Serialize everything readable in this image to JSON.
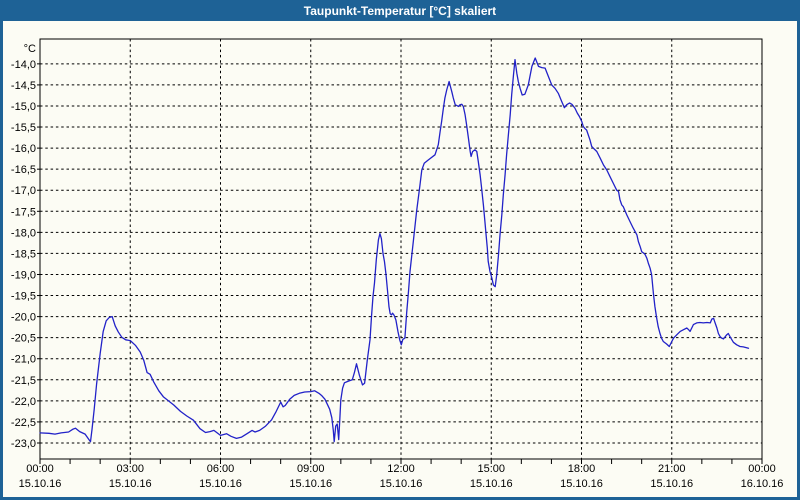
{
  "window": {
    "title": "Taupunkt-Temperatur [°C] skaliert"
  },
  "colors": {
    "titlebar": "#1E6296",
    "window_bg": "#FCFCF4",
    "line": "#2222C8",
    "grid": "#000000",
    "title_text": "#FFFFFF"
  },
  "chart_data": {
    "type": "line",
    "title": "Taupunkt-Temperatur [°C] skaliert",
    "grid": "dashed",
    "legend": "none",
    "y_axis": {
      "unit": "°C",
      "max": -14.0,
      "min": -23.0,
      "step": 0.5,
      "ylim": [
        -23.38,
        -13.41
      ],
      "labels": [
        "-14,0",
        "-14,5",
        "-15,0",
        "-15,5",
        "-16,0",
        "-16,5",
        "-17,0",
        "-17,5",
        "-18,0",
        "-18,5",
        "-19,0",
        "-19,5",
        "-20,0",
        "-20,5",
        "-21,0",
        "-21,5",
        "-22,0",
        "-22,5",
        "-23,0"
      ]
    },
    "x_axis": {
      "gridline_hours": [
        3,
        6,
        9,
        12,
        15,
        18,
        21
      ],
      "minor_tick_every_hours": 1,
      "labels": [
        {
          "hour": 0,
          "time": "00:00",
          "date": "15.10.16"
        },
        {
          "hour": 3,
          "time": "03:00",
          "date": "15.10.16"
        },
        {
          "hour": 6,
          "time": "06:00",
          "date": "15.10.16"
        },
        {
          "hour": 9,
          "time": "09:00",
          "date": "15.10.16"
        },
        {
          "hour": 12,
          "time": "12:00",
          "date": "15.10.16"
        },
        {
          "hour": 15,
          "time": "15:00",
          "date": "15.10.16"
        },
        {
          "hour": 18,
          "time": "18:00",
          "date": "15.10.16"
        },
        {
          "hour": 21,
          "time": "21:00",
          "date": "15.10.16"
        },
        {
          "hour": 24,
          "time": "00:00",
          "date": "16.10.16"
        }
      ]
    },
    "series": [
      {
        "name": "Taupunkt-Temperatur",
        "color": "#2222C8",
        "points": [
          [
            0.0,
            -22.76
          ],
          [
            0.3,
            -22.77
          ],
          [
            0.5,
            -22.79
          ],
          [
            0.7,
            -22.76
          ],
          [
            0.95,
            -22.74
          ],
          [
            1.1,
            -22.67
          ],
          [
            1.18,
            -22.65
          ],
          [
            1.32,
            -22.73
          ],
          [
            1.5,
            -22.79
          ],
          [
            1.62,
            -22.91
          ],
          [
            1.68,
            -22.97
          ],
          [
            1.73,
            -22.68
          ],
          [
            1.8,
            -22.2
          ],
          [
            1.88,
            -21.6
          ],
          [
            2.0,
            -20.87
          ],
          [
            2.1,
            -20.35
          ],
          [
            2.2,
            -20.1
          ],
          [
            2.3,
            -20.02
          ],
          [
            2.4,
            -20.0
          ],
          [
            2.5,
            -20.22
          ],
          [
            2.6,
            -20.36
          ],
          [
            2.72,
            -20.49
          ],
          [
            2.85,
            -20.55
          ],
          [
            3.0,
            -20.57
          ],
          [
            3.17,
            -20.68
          ],
          [
            3.33,
            -20.84
          ],
          [
            3.45,
            -21.04
          ],
          [
            3.56,
            -21.33
          ],
          [
            3.66,
            -21.37
          ],
          [
            3.78,
            -21.55
          ],
          [
            3.95,
            -21.76
          ],
          [
            4.1,
            -21.9
          ],
          [
            4.27,
            -22.0
          ],
          [
            4.45,
            -22.1
          ],
          [
            4.67,
            -22.25
          ],
          [
            4.88,
            -22.36
          ],
          [
            5.1,
            -22.46
          ],
          [
            5.32,
            -22.66
          ],
          [
            5.5,
            -22.75
          ],
          [
            5.65,
            -22.73
          ],
          [
            5.78,
            -22.7
          ],
          [
            6.0,
            -22.82
          ],
          [
            6.2,
            -22.78
          ],
          [
            6.35,
            -22.84
          ],
          [
            6.53,
            -22.89
          ],
          [
            6.7,
            -22.86
          ],
          [
            6.88,
            -22.78
          ],
          [
            7.05,
            -22.7
          ],
          [
            7.15,
            -22.74
          ],
          [
            7.3,
            -22.7
          ],
          [
            7.5,
            -22.6
          ],
          [
            7.7,
            -22.45
          ],
          [
            7.85,
            -22.25
          ],
          [
            8.0,
            -22.03
          ],
          [
            8.08,
            -22.14
          ],
          [
            8.15,
            -22.11
          ],
          [
            8.3,
            -21.96
          ],
          [
            8.45,
            -21.87
          ],
          [
            8.62,
            -21.82
          ],
          [
            8.8,
            -21.79
          ],
          [
            9.0,
            -21.78
          ],
          [
            9.13,
            -21.76
          ],
          [
            9.27,
            -21.82
          ],
          [
            9.37,
            -21.88
          ],
          [
            9.47,
            -21.96
          ],
          [
            9.55,
            -22.08
          ],
          [
            9.63,
            -22.2
          ],
          [
            9.7,
            -22.4
          ],
          [
            9.75,
            -22.7
          ],
          [
            9.78,
            -22.97
          ],
          [
            9.83,
            -22.6
          ],
          [
            9.88,
            -22.55
          ],
          [
            9.93,
            -22.92
          ],
          [
            9.97,
            -22.4
          ],
          [
            10.0,
            -21.98
          ],
          [
            10.06,
            -21.7
          ],
          [
            10.12,
            -21.57
          ],
          [
            10.25,
            -21.53
          ],
          [
            10.38,
            -21.5
          ],
          [
            10.45,
            -21.33
          ],
          [
            10.52,
            -21.12
          ],
          [
            10.62,
            -21.4
          ],
          [
            10.72,
            -21.62
          ],
          [
            10.79,
            -21.58
          ],
          [
            10.88,
            -21.03
          ],
          [
            10.97,
            -20.55
          ],
          [
            11.02,
            -20.0
          ],
          [
            11.07,
            -19.52
          ],
          [
            11.12,
            -19.2
          ],
          [
            11.18,
            -18.65
          ],
          [
            11.25,
            -18.18
          ],
          [
            11.3,
            -18.03
          ],
          [
            11.35,
            -18.15
          ],
          [
            11.4,
            -18.5
          ],
          [
            11.45,
            -18.7
          ],
          [
            11.5,
            -19.0
          ],
          [
            11.55,
            -19.38
          ],
          [
            11.6,
            -19.77
          ],
          [
            11.64,
            -19.93
          ],
          [
            11.68,
            -19.96
          ],
          [
            11.72,
            -19.92
          ],
          [
            11.77,
            -19.97
          ],
          [
            11.83,
            -20.08
          ],
          [
            11.9,
            -20.36
          ],
          [
            11.96,
            -20.56
          ],
          [
            12.01,
            -20.67
          ],
          [
            12.06,
            -20.54
          ],
          [
            12.13,
            -20.51
          ],
          [
            12.19,
            -19.9
          ],
          [
            12.25,
            -19.4
          ],
          [
            12.3,
            -18.93
          ],
          [
            12.41,
            -18.22
          ],
          [
            12.52,
            -17.5
          ],
          [
            12.63,
            -16.87
          ],
          [
            12.69,
            -16.52
          ],
          [
            12.77,
            -16.36
          ],
          [
            12.91,
            -16.28
          ],
          [
            13.13,
            -16.16
          ],
          [
            13.24,
            -15.92
          ],
          [
            13.3,
            -15.61
          ],
          [
            13.35,
            -15.37
          ],
          [
            13.41,
            -15.05
          ],
          [
            13.46,
            -14.81
          ],
          [
            13.52,
            -14.62
          ],
          [
            13.6,
            -14.42
          ],
          [
            13.69,
            -14.66
          ],
          [
            13.74,
            -14.81
          ],
          [
            13.8,
            -14.97
          ],
          [
            13.91,
            -15.01
          ],
          [
            13.96,
            -14.97
          ],
          [
            14.02,
            -14.96
          ],
          [
            14.07,
            -15.01
          ],
          [
            14.13,
            -15.21
          ],
          [
            14.18,
            -15.45
          ],
          [
            14.24,
            -15.76
          ],
          [
            14.3,
            -16.08
          ],
          [
            14.33,
            -16.2
          ],
          [
            14.38,
            -16.08
          ],
          [
            14.46,
            -16.04
          ],
          [
            14.52,
            -16.08
          ],
          [
            14.57,
            -16.32
          ],
          [
            14.63,
            -16.63
          ],
          [
            14.68,
            -16.95
          ],
          [
            14.74,
            -17.35
          ],
          [
            14.79,
            -17.74
          ],
          [
            14.83,
            -18.06
          ],
          [
            14.87,
            -18.37
          ],
          [
            14.9,
            -18.69
          ],
          [
            14.96,
            -18.93
          ],
          [
            15.02,
            -19.09
          ],
          [
            15.07,
            -19.25
          ],
          [
            15.13,
            -19.29
          ],
          [
            15.18,
            -19.01
          ],
          [
            15.24,
            -18.53
          ],
          [
            15.29,
            -18.06
          ],
          [
            15.35,
            -17.59
          ],
          [
            15.4,
            -17.11
          ],
          [
            15.46,
            -16.63
          ],
          [
            15.51,
            -16.16
          ],
          [
            15.57,
            -15.68
          ],
          [
            15.63,
            -15.21
          ],
          [
            15.68,
            -14.73
          ],
          [
            15.74,
            -14.26
          ],
          [
            15.79,
            -13.9
          ],
          [
            15.85,
            -14.22
          ],
          [
            15.9,
            -14.42
          ],
          [
            15.96,
            -14.58
          ],
          [
            16.03,
            -14.74
          ],
          [
            16.12,
            -14.72
          ],
          [
            16.23,
            -14.5
          ],
          [
            16.35,
            -14.06
          ],
          [
            16.46,
            -13.86
          ],
          [
            16.57,
            -14.06
          ],
          [
            16.68,
            -14.09
          ],
          [
            16.79,
            -14.1
          ],
          [
            16.9,
            -14.3
          ],
          [
            17.01,
            -14.5
          ],
          [
            17.12,
            -14.58
          ],
          [
            17.23,
            -14.7
          ],
          [
            17.34,
            -14.89
          ],
          [
            17.43,
            -15.04
          ],
          [
            17.51,
            -14.97
          ],
          [
            17.6,
            -14.93
          ],
          [
            17.68,
            -14.96
          ],
          [
            17.78,
            -15.05
          ],
          [
            17.86,
            -15.17
          ],
          [
            17.93,
            -15.25
          ],
          [
            18.01,
            -15.37
          ],
          [
            18.06,
            -15.49
          ],
          [
            18.12,
            -15.54
          ],
          [
            18.17,
            -15.57
          ],
          [
            18.28,
            -15.8
          ],
          [
            18.34,
            -15.96
          ],
          [
            18.42,
            -16.02
          ],
          [
            18.51,
            -16.08
          ],
          [
            18.62,
            -16.24
          ],
          [
            18.73,
            -16.4
          ],
          [
            18.84,
            -16.52
          ],
          [
            18.95,
            -16.68
          ],
          [
            19.06,
            -16.84
          ],
          [
            19.17,
            -17.0
          ],
          [
            19.23,
            -17.03
          ],
          [
            19.28,
            -17.23
          ],
          [
            19.34,
            -17.35
          ],
          [
            19.39,
            -17.39
          ],
          [
            19.51,
            -17.59
          ],
          [
            19.61,
            -17.74
          ],
          [
            19.72,
            -17.9
          ],
          [
            19.84,
            -18.06
          ],
          [
            19.89,
            -18.22
          ],
          [
            19.95,
            -18.34
          ],
          [
            20.0,
            -18.46
          ],
          [
            20.06,
            -18.49
          ],
          [
            20.11,
            -18.52
          ],
          [
            20.17,
            -18.61
          ],
          [
            20.22,
            -18.73
          ],
          [
            20.28,
            -18.85
          ],
          [
            20.33,
            -19.0
          ],
          [
            20.39,
            -19.45
          ],
          [
            20.44,
            -19.76
          ],
          [
            20.5,
            -20.04
          ],
          [
            20.55,
            -20.24
          ],
          [
            20.61,
            -20.4
          ],
          [
            20.66,
            -20.51
          ],
          [
            20.72,
            -20.59
          ],
          [
            20.83,
            -20.65
          ],
          [
            20.92,
            -20.71
          ],
          [
            21.0,
            -20.59
          ],
          [
            21.06,
            -20.51
          ],
          [
            21.17,
            -20.43
          ],
          [
            21.28,
            -20.35
          ],
          [
            21.39,
            -20.31
          ],
          [
            21.5,
            -20.27
          ],
          [
            21.56,
            -20.31
          ],
          [
            21.61,
            -20.35
          ],
          [
            21.72,
            -20.19
          ],
          [
            21.83,
            -20.15
          ],
          [
            21.94,
            -20.14
          ],
          [
            22.05,
            -20.15
          ],
          [
            22.17,
            -20.14
          ],
          [
            22.28,
            -20.15
          ],
          [
            22.33,
            -20.06
          ],
          [
            22.39,
            -20.04
          ],
          [
            22.44,
            -20.15
          ],
          [
            22.5,
            -20.27
          ],
          [
            22.55,
            -20.4
          ],
          [
            22.61,
            -20.48
          ],
          [
            22.66,
            -20.51
          ],
          [
            22.72,
            -20.53
          ],
          [
            22.83,
            -20.43
          ],
          [
            22.88,
            -20.4
          ],
          [
            22.94,
            -20.48
          ],
          [
            23.0,
            -20.55
          ],
          [
            23.05,
            -20.61
          ],
          [
            23.16,
            -20.67
          ],
          [
            23.27,
            -20.71
          ],
          [
            23.38,
            -20.72
          ],
          [
            23.55,
            -20.75
          ]
        ]
      }
    ]
  }
}
